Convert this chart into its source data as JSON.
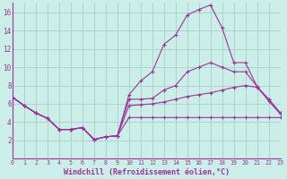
{
  "background_color": "#cceee8",
  "grid_color": "#aacccc",
  "line_color": "#993399",
  "xlim": [
    0,
    23
  ],
  "ylim": [
    0,
    17
  ],
  "xlabel": "Windchill (Refroidissement éolien,°C)",
  "yticks": [
    2,
    4,
    6,
    8,
    10,
    12,
    14,
    16
  ],
  "xticks": [
    0,
    1,
    2,
    3,
    4,
    5,
    6,
    7,
    8,
    9,
    10,
    11,
    12,
    13,
    14,
    15,
    16,
    17,
    18,
    19,
    20,
    21,
    22,
    23
  ],
  "line1_x": [
    0,
    1,
    2,
    3,
    4,
    5,
    6,
    7,
    8,
    9,
    10,
    11,
    12,
    13,
    14,
    15,
    16,
    17,
    18,
    19,
    20,
    21,
    22,
    23
  ],
  "line1_y": [
    6.7,
    5.8,
    5.0,
    4.4,
    3.2,
    3.2,
    3.4,
    2.1,
    2.4,
    2.5,
    4.5,
    4.5,
    4.5,
    4.5,
    4.5,
    4.5,
    4.5,
    4.5,
    4.5,
    4.5,
    4.5,
    4.5,
    4.5,
    4.5
  ],
  "line2_x": [
    0,
    1,
    2,
    3,
    4,
    5,
    6,
    7,
    8,
    9,
    10,
    11,
    12,
    13,
    14,
    15,
    16,
    17,
    18,
    19,
    20,
    21,
    22,
    23
  ],
  "line2_y": [
    6.7,
    5.8,
    5.0,
    4.4,
    3.2,
    3.2,
    3.4,
    2.1,
    2.4,
    2.5,
    5.8,
    5.9,
    6.0,
    6.2,
    6.5,
    6.8,
    7.0,
    7.2,
    7.5,
    7.8,
    8.0,
    7.8,
    6.5,
    5.0
  ],
  "line3_x": [
    0,
    1,
    2,
    3,
    4,
    5,
    6,
    7,
    8,
    9,
    10,
    11,
    12,
    13,
    14,
    15,
    16,
    17,
    18,
    19,
    20,
    21,
    22,
    23
  ],
  "line3_y": [
    6.7,
    5.8,
    5.0,
    4.4,
    3.2,
    3.2,
    3.4,
    2.1,
    2.4,
    2.5,
    6.5,
    6.5,
    6.6,
    7.5,
    8.0,
    9.5,
    10.0,
    10.5,
    10.0,
    9.5,
    9.5,
    7.9,
    6.5,
    5.0
  ],
  "line4_x": [
    0,
    1,
    2,
    3,
    4,
    5,
    6,
    7,
    8,
    9,
    10,
    11,
    12,
    13,
    14,
    15,
    16,
    17,
    18,
    19,
    20,
    21,
    22,
    23
  ],
  "line4_y": [
    6.7,
    5.8,
    5.0,
    4.4,
    3.2,
    3.2,
    3.4,
    2.1,
    2.4,
    2.5,
    7.0,
    8.5,
    9.5,
    12.5,
    13.5,
    15.7,
    16.3,
    16.8,
    14.3,
    10.5,
    10.5,
    7.9,
    6.3,
    4.9
  ]
}
